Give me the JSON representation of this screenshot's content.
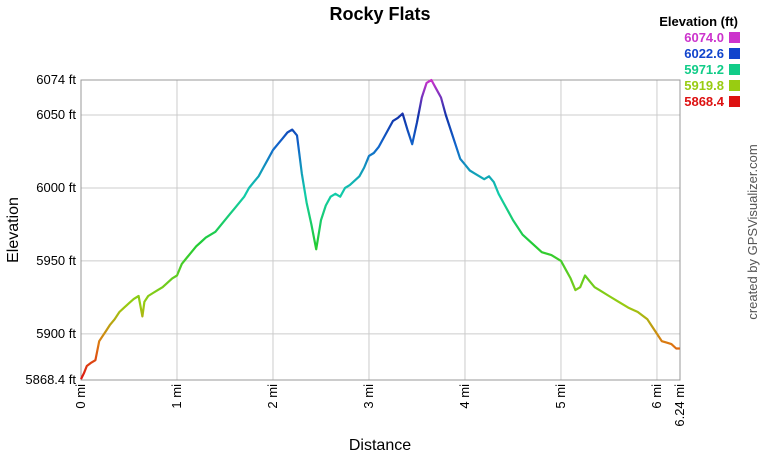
{
  "chart_data": {
    "type": "line",
    "title": "Rocky Flats",
    "xlabel": "Distance",
    "ylabel": "Elevation",
    "xlim": [
      0,
      6.24
    ],
    "ylim": [
      5868.4,
      6074
    ],
    "grid": true,
    "x_ticks": [
      {
        "value": 0,
        "label": "0 mi"
      },
      {
        "value": 1,
        "label": "1 mi"
      },
      {
        "value": 2,
        "label": "2 mi"
      },
      {
        "value": 3,
        "label": "3 mi"
      },
      {
        "value": 4,
        "label": "4 mi"
      },
      {
        "value": 5,
        "label": "5 mi"
      },
      {
        "value": 6,
        "label": "6 mi"
      },
      {
        "value": 6.24,
        "label": "6.24 mi"
      }
    ],
    "y_ticks": [
      {
        "value": 5868.4,
        "label": "5868.4 ft"
      },
      {
        "value": 5900,
        "label": "5900 ft"
      },
      {
        "value": 5950,
        "label": "5950 ft"
      },
      {
        "value": 6000,
        "label": "6000 ft"
      },
      {
        "value": 6050,
        "label": "6050 ft"
      },
      {
        "value": 6074,
        "label": "6074 ft"
      }
    ],
    "legend": {
      "title": "Elevation (ft)",
      "placement": "top-right",
      "entries": [
        {
          "label": "6074.0",
          "color": "#cc33cc"
        },
        {
          "label": "6022.6",
          "color": "#1144cc"
        },
        {
          "label": "5971.2",
          "color": "#11cc88"
        },
        {
          "label": "5919.8",
          "color": "#99cc11"
        },
        {
          "label": "5868.4",
          "color": "#dd1111"
        }
      ]
    },
    "credit": "created by GPSVisualizer.com",
    "series": [
      {
        "x": [
          0,
          0.03,
          0.06,
          0.1,
          0.15,
          0.19,
          0.22,
          0.26,
          0.3,
          0.35,
          0.4,
          0.45,
          0.5,
          0.55,
          0.6,
          0.64,
          0.66,
          0.7,
          0.75,
          0.8,
          0.85,
          0.9,
          0.95,
          1.0,
          1.05,
          1.1,
          1.15,
          1.2,
          1.25,
          1.3,
          1.35,
          1.4,
          1.45,
          1.5,
          1.55,
          1.6,
          1.65,
          1.7,
          1.75,
          1.8,
          1.85,
          1.9,
          1.95,
          2.0,
          2.05,
          2.1,
          2.15,
          2.2,
          2.25,
          2.3,
          2.35,
          2.4,
          2.45,
          2.5,
          2.55,
          2.6,
          2.65,
          2.7,
          2.75,
          2.8,
          2.85,
          2.9,
          2.95,
          3.0,
          3.05,
          3.1,
          3.15,
          3.2,
          3.25,
          3.3,
          3.35,
          3.4,
          3.45,
          3.5,
          3.55,
          3.6,
          3.65,
          3.7,
          3.75,
          3.8,
          3.85,
          3.9,
          3.95,
          4.0,
          4.05,
          4.1,
          4.15,
          4.2,
          4.25,
          4.3,
          4.35,
          4.4,
          4.45,
          4.5,
          4.6,
          4.7,
          4.8,
          4.9,
          5.0,
          5.05,
          5.1,
          5.15,
          5.2,
          5.25,
          5.3,
          5.35,
          5.4,
          5.5,
          5.6,
          5.7,
          5.8,
          5.9,
          5.95,
          6.0,
          6.05,
          6.1,
          6.15,
          6.2,
          6.24
        ],
        "y": [
          5869,
          5873,
          5878,
          5880,
          5882,
          5895,
          5898,
          5902,
          5906,
          5910,
          5915,
          5918,
          5921,
          5924,
          5926,
          5912,
          5922,
          5926,
          5928,
          5930,
          5932,
          5935,
          5938,
          5940,
          5948,
          5952,
          5956,
          5960,
          5963,
          5966,
          5968,
          5970,
          5974,
          5978,
          5982,
          5986,
          5990,
          5994,
          6000,
          6004,
          6008,
          6014,
          6020,
          6026,
          6030,
          6034,
          6038,
          6040,
          6036,
          6010,
          5990,
          5975,
          5958,
          5978,
          5988,
          5994,
          5996,
          5994,
          6000,
          6002,
          6005,
          6008,
          6014,
          6022,
          6024,
          6028,
          6034,
          6040,
          6046,
          6048,
          6051,
          6040,
          6030,
          6045,
          6062,
          6072,
          6074,
          6068,
          6062,
          6050,
          6040,
          6030,
          6020,
          6016,
          6012,
          6010,
          6008,
          6006,
          6008,
          6004,
          5996,
          5990,
          5984,
          5978,
          5968,
          5962,
          5956,
          5954,
          5950,
          5944,
          5938,
          5930,
          5932,
          5940,
          5936,
          5932,
          5930,
          5926,
          5922,
          5918,
          5915,
          5910,
          5905,
          5900,
          5895,
          5894,
          5893,
          5890,
          5890
        ]
      }
    ]
  }
}
